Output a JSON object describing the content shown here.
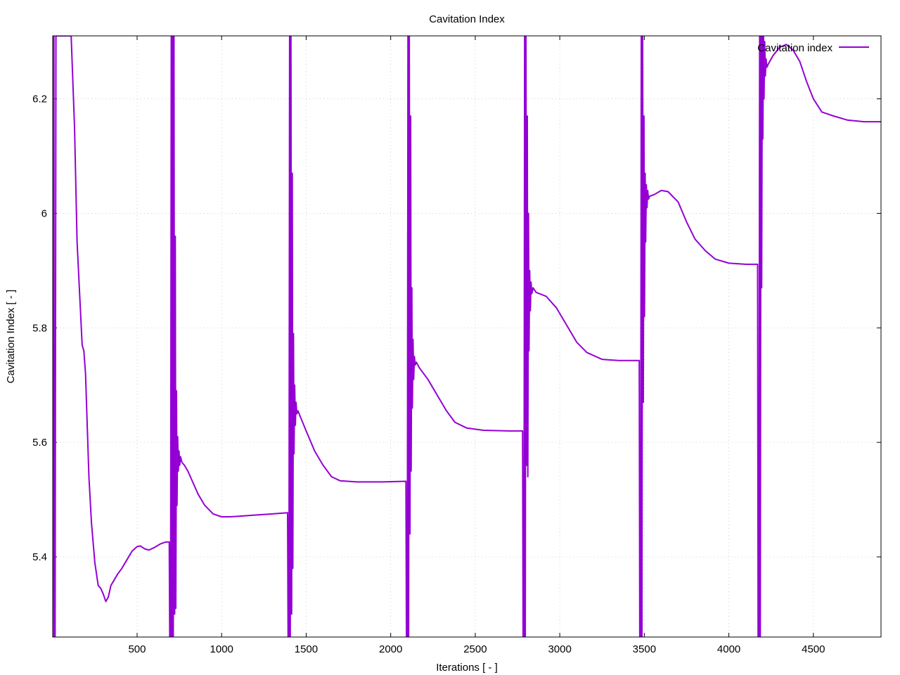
{
  "chart_data": {
    "type": "line",
    "title": "Cavitation Index",
    "xlabel": "Iterations [ - ]",
    "ylabel": "Cavitation Index [ - ]",
    "xlim": [
      1,
      4900
    ],
    "ylim": [
      5.26,
      6.31
    ],
    "xticks": [
      500,
      1000,
      1500,
      2000,
      2500,
      3000,
      3500,
      4000,
      4500
    ],
    "yticks": [
      5.4,
      5.6,
      5.8,
      6.0,
      6.2
    ],
    "ytick_labels": [
      "5.4",
      "5.6",
      "5.8",
      "6",
      "6.2"
    ],
    "grid": true,
    "legend_position": "top-right",
    "series": [
      {
        "name": "Cavitation index",
        "color": "#9400d3",
        "points": [
          [
            1,
            5.26
          ],
          [
            5,
            6.31
          ],
          [
            8,
            6.31
          ],
          [
            10,
            5.26
          ],
          [
            15,
            5.26
          ],
          [
            20,
            6.31
          ],
          [
            110,
            6.31
          ],
          [
            130,
            6.15
          ],
          [
            145,
            5.95
          ],
          [
            160,
            5.86
          ],
          [
            175,
            5.77
          ],
          [
            185,
            5.76
          ],
          [
            195,
            5.72
          ],
          [
            205,
            5.63
          ],
          [
            215,
            5.54
          ],
          [
            230,
            5.46
          ],
          [
            250,
            5.39
          ],
          [
            270,
            5.35
          ],
          [
            285,
            5.345
          ],
          [
            300,
            5.335
          ],
          [
            315,
            5.322
          ],
          [
            330,
            5.33
          ],
          [
            345,
            5.35
          ],
          [
            365,
            5.36
          ],
          [
            385,
            5.37
          ],
          [
            410,
            5.38
          ],
          [
            440,
            5.395
          ],
          [
            470,
            5.41
          ],
          [
            500,
            5.418
          ],
          [
            520,
            5.419
          ],
          [
            545,
            5.414
          ],
          [
            570,
            5.412
          ],
          [
            600,
            5.416
          ],
          [
            640,
            5.423
          ],
          [
            670,
            5.426
          ],
          [
            690,
            5.426
          ],
          [
            693,
            5.26
          ],
          [
            698,
            5.26
          ],
          [
            702,
            6.31
          ],
          [
            706,
            5.26
          ],
          [
            710,
            6.31
          ],
          [
            714,
            5.26
          ],
          [
            718,
            6.31
          ],
          [
            722,
            5.3
          ],
          [
            726,
            5.96
          ],
          [
            729,
            5.31
          ],
          [
            733,
            5.69
          ],
          [
            736,
            5.49
          ],
          [
            740,
            5.61
          ],
          [
            744,
            5.55
          ],
          [
            748,
            5.585
          ],
          [
            752,
            5.56
          ],
          [
            757,
            5.575
          ],
          [
            765,
            5.565
          ],
          [
            780,
            5.56
          ],
          [
            800,
            5.55
          ],
          [
            830,
            5.53
          ],
          [
            860,
            5.51
          ],
          [
            900,
            5.49
          ],
          [
            950,
            5.475
          ],
          [
            1000,
            5.47
          ],
          [
            1050,
            5.47
          ],
          [
            1100,
            5.471
          ],
          [
            1200,
            5.473
          ],
          [
            1300,
            5.475
          ],
          [
            1390,
            5.477
          ],
          [
            1393,
            5.26
          ],
          [
            1398,
            5.26
          ],
          [
            1402,
            6.31
          ],
          [
            1406,
            5.26
          ],
          [
            1410,
            6.31
          ],
          [
            1414,
            5.3
          ],
          [
            1418,
            6.07
          ],
          [
            1421,
            5.38
          ],
          [
            1425,
            5.79
          ],
          [
            1428,
            5.58
          ],
          [
            1432,
            5.7
          ],
          [
            1436,
            5.63
          ],
          [
            1440,
            5.67
          ],
          [
            1445,
            5.65
          ],
          [
            1452,
            5.655
          ],
          [
            1465,
            5.645
          ],
          [
            1500,
            5.62
          ],
          [
            1550,
            5.585
          ],
          [
            1600,
            5.56
          ],
          [
            1650,
            5.54
          ],
          [
            1700,
            5.533
          ],
          [
            1800,
            5.531
          ],
          [
            1950,
            5.531
          ],
          [
            2090,
            5.532
          ],
          [
            2093,
            5.26
          ],
          [
            2098,
            5.26
          ],
          [
            2102,
            6.31
          ],
          [
            2106,
            5.26
          ],
          [
            2110,
            6.31
          ],
          [
            2114,
            5.44
          ],
          [
            2118,
            6.17
          ],
          [
            2121,
            5.55
          ],
          [
            2125,
            5.87
          ],
          [
            2128,
            5.66
          ],
          [
            2132,
            5.78
          ],
          [
            2136,
            5.71
          ],
          [
            2140,
            5.75
          ],
          [
            2145,
            5.735
          ],
          [
            2152,
            5.74
          ],
          [
            2170,
            5.73
          ],
          [
            2220,
            5.71
          ],
          [
            2280,
            5.68
          ],
          [
            2330,
            5.655
          ],
          [
            2380,
            5.635
          ],
          [
            2450,
            5.625
          ],
          [
            2550,
            5.621
          ],
          [
            2700,
            5.62
          ],
          [
            2780,
            5.62
          ],
          [
            2783,
            5.26
          ],
          [
            2788,
            5.26
          ],
          [
            2792,
            6.31
          ],
          [
            2796,
            5.26
          ],
          [
            2800,
            6.31
          ],
          [
            2804,
            5.56
          ],
          [
            2808,
            6.17
          ],
          [
            2811,
            5.54
          ],
          [
            2815,
            6.0
          ],
          [
            2818,
            5.76
          ],
          [
            2822,
            5.9
          ],
          [
            2826,
            5.83
          ],
          [
            2830,
            5.88
          ],
          [
            2835,
            5.86
          ],
          [
            2842,
            5.87
          ],
          [
            2860,
            5.862
          ],
          [
            2920,
            5.855
          ],
          [
            2980,
            5.835
          ],
          [
            3050,
            5.8
          ],
          [
            3100,
            5.775
          ],
          [
            3160,
            5.757
          ],
          [
            3250,
            5.745
          ],
          [
            3350,
            5.743
          ],
          [
            3470,
            5.743
          ],
          [
            3473,
            5.26
          ],
          [
            3478,
            5.26
          ],
          [
            3482,
            6.31
          ],
          [
            3486,
            5.26
          ],
          [
            3490,
            6.31
          ],
          [
            3494,
            5.67
          ],
          [
            3498,
            6.17
          ],
          [
            3501,
            5.82
          ],
          [
            3505,
            6.07
          ],
          [
            3508,
            5.95
          ],
          [
            3512,
            6.05
          ],
          [
            3516,
            6.01
          ],
          [
            3520,
            6.04
          ],
          [
            3525,
            6.025
          ],
          [
            3532,
            6.03
          ],
          [
            3560,
            6.033
          ],
          [
            3600,
            6.04
          ],
          [
            3640,
            6.038
          ],
          [
            3700,
            6.02
          ],
          [
            3750,
            5.985
          ],
          [
            3800,
            5.955
          ],
          [
            3860,
            5.935
          ],
          [
            3920,
            5.92
          ],
          [
            4000,
            5.913
          ],
          [
            4100,
            5.911
          ],
          [
            4170,
            5.911
          ],
          [
            4173,
            5.26
          ],
          [
            4178,
            5.26
          ],
          [
            4182,
            6.31
          ],
          [
            4186,
            5.26
          ],
          [
            4190,
            6.31
          ],
          [
            4194,
            5.87
          ],
          [
            4198,
            6.31
          ],
          [
            4201,
            6.13
          ],
          [
            4205,
            6.31
          ],
          [
            4208,
            6.2
          ],
          [
            4212,
            6.3
          ],
          [
            4216,
            6.24
          ],
          [
            4220,
            6.27
          ],
          [
            4225,
            6.255
          ],
          [
            4232,
            6.26
          ],
          [
            4260,
            6.275
          ],
          [
            4300,
            6.29
          ],
          [
            4340,
            6.295
          ],
          [
            4380,
            6.285
          ],
          [
            4420,
            6.265
          ],
          [
            4460,
            6.23
          ],
          [
            4500,
            6.2
          ],
          [
            4550,
            6.177
          ],
          [
            4620,
            6.17
          ],
          [
            4700,
            6.163
          ],
          [
            4800,
            6.16
          ],
          [
            4900,
            6.16
          ]
        ]
      }
    ]
  }
}
